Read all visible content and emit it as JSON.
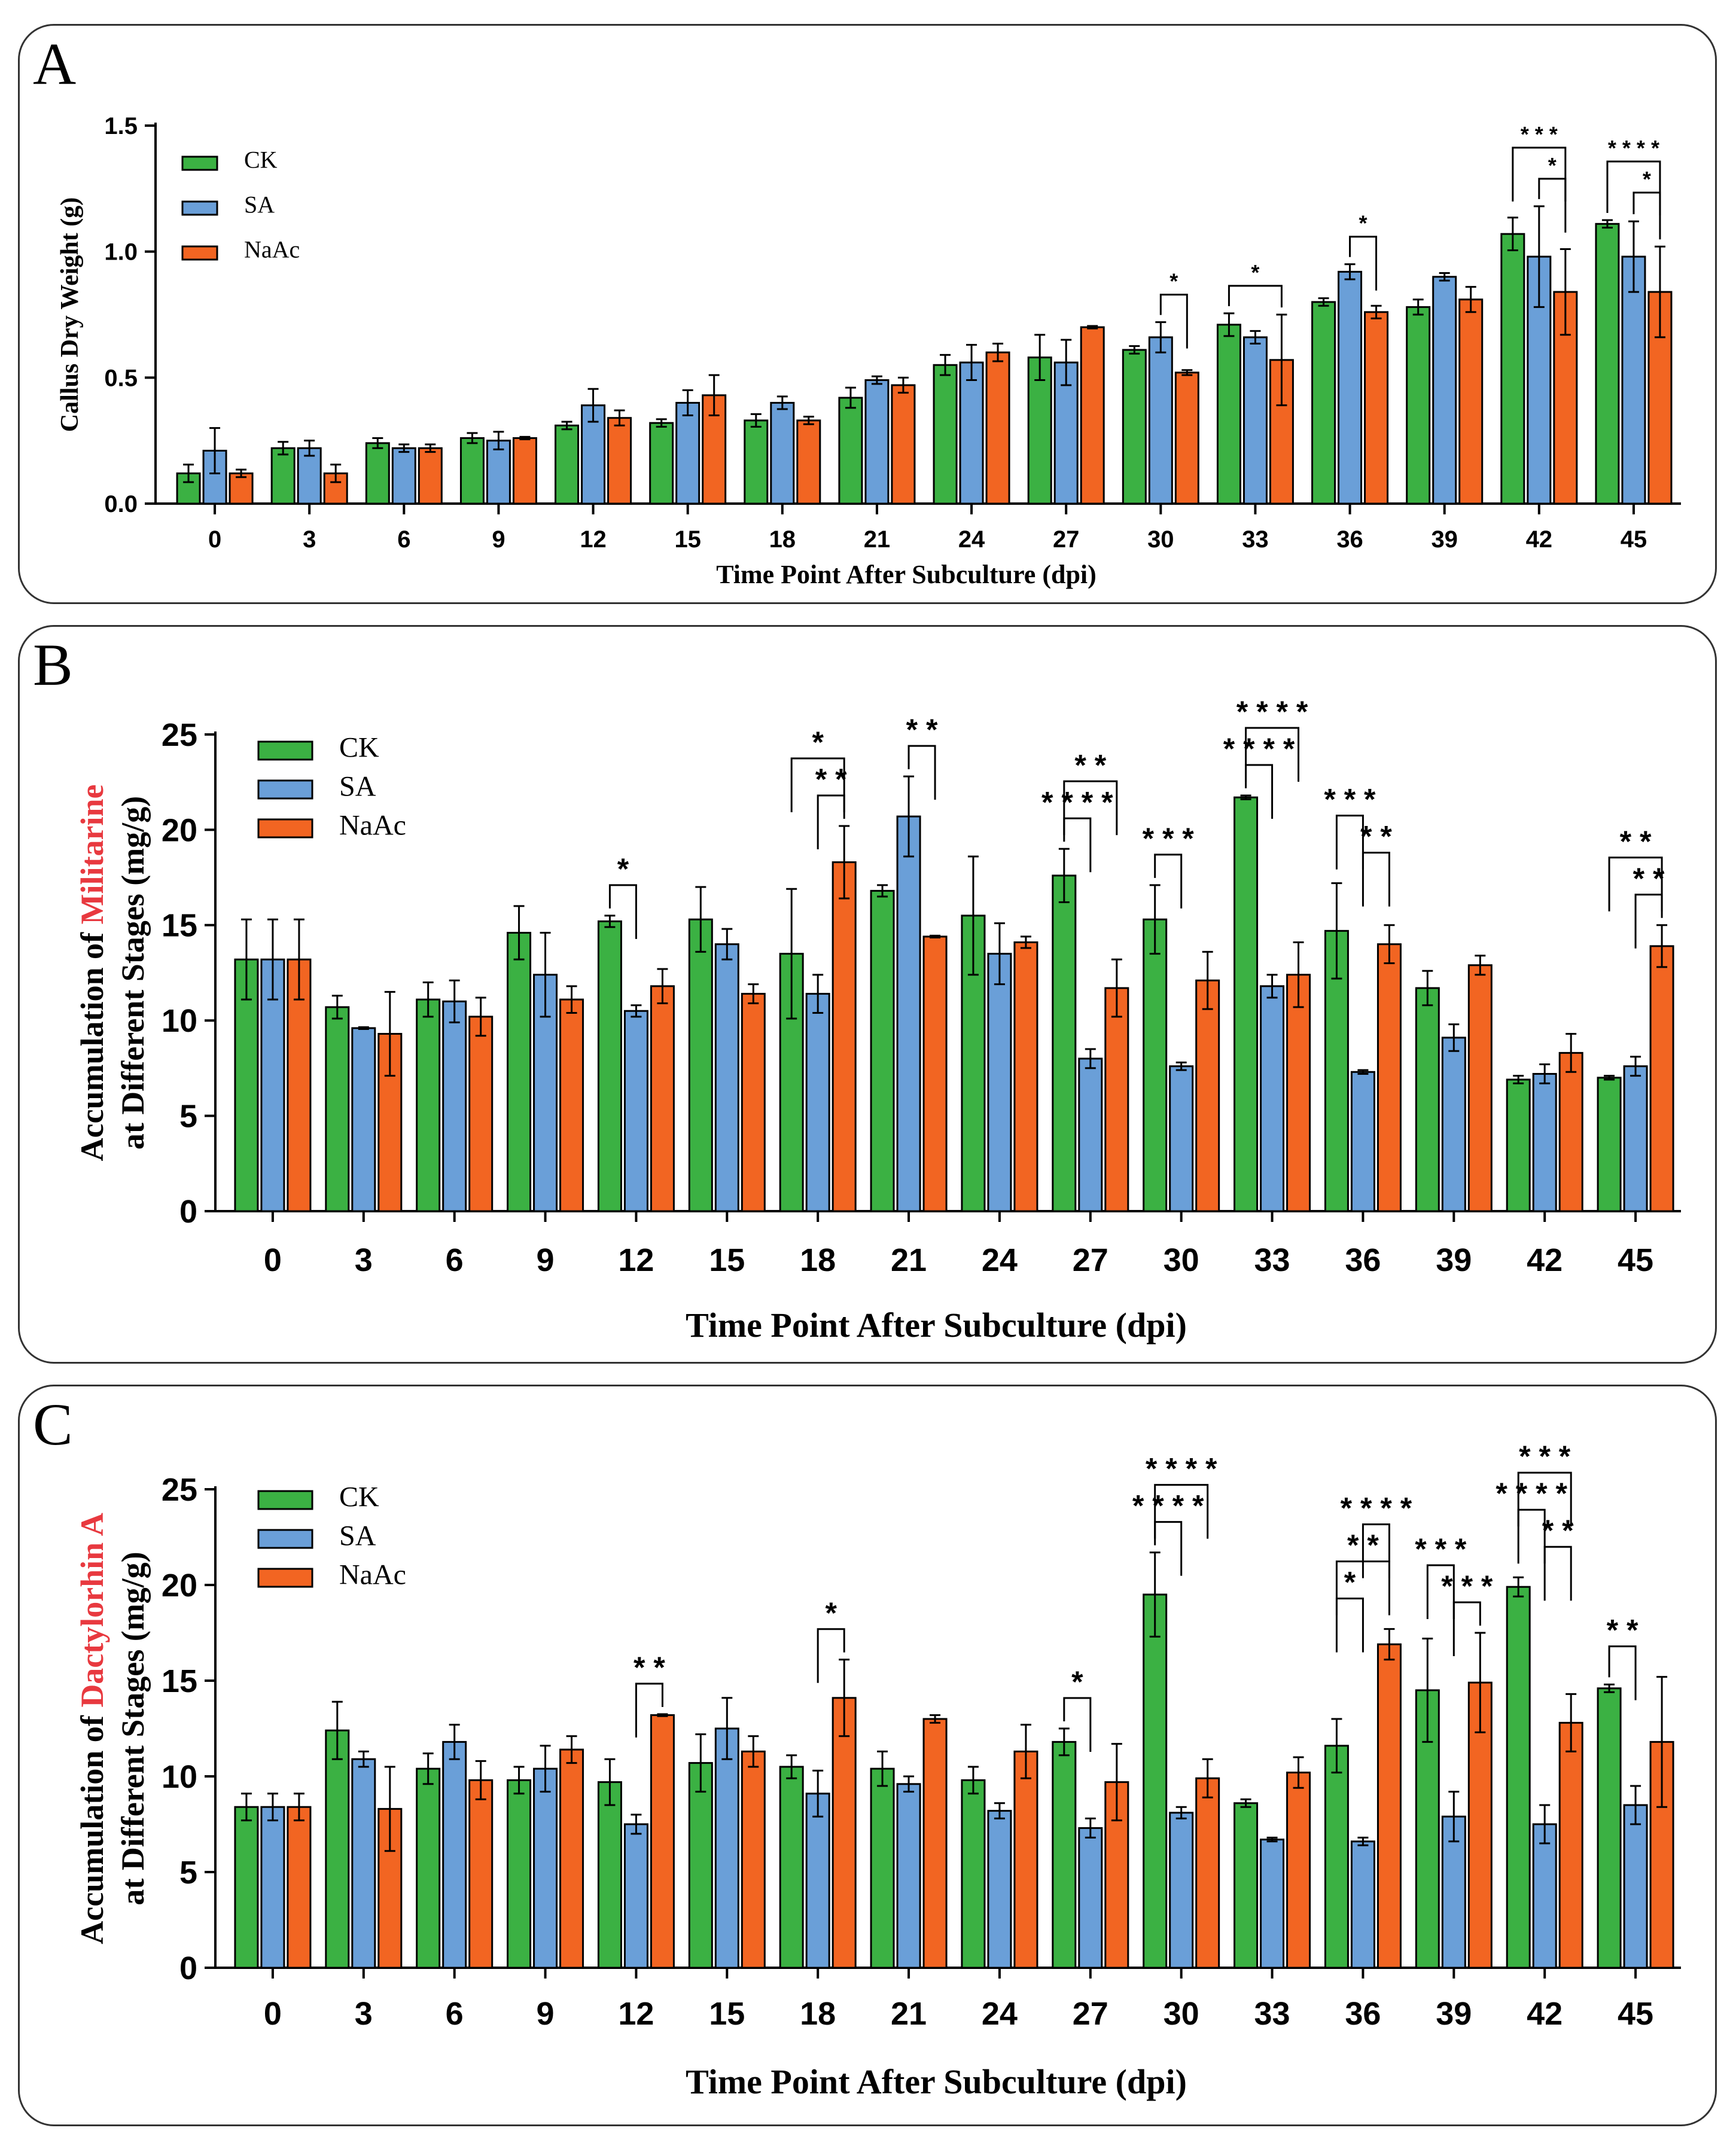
{
  "colors": {
    "CK": "#3bb143",
    "SA": "#6a9fd8",
    "NaAc": "#f26522",
    "frame": "#333333"
  },
  "chart_data": [
    {
      "panel": "A",
      "type": "bar",
      "xlabel": "Time Point After Subculture (dpi)",
      "ylabel_parts": [
        {
          "text": "Callus Dry Weight (g)",
          "color": "#000000"
        }
      ],
      "ylabel_line2": "",
      "ylim": [
        0,
        1.5
      ],
      "yticks": [
        "0.0",
        "0.5",
        "1.0",
        "1.5"
      ],
      "categories": [
        "0",
        "3",
        "6",
        "9",
        "12",
        "15",
        "18",
        "21",
        "24",
        "27",
        "30",
        "33",
        "36",
        "39",
        "42",
        "45"
      ],
      "series": [
        {
          "name": "CK",
          "values": [
            0.12,
            0.22,
            0.24,
            0.26,
            0.31,
            0.32,
            0.33,
            0.42,
            0.55,
            0.58,
            0.61,
            0.71,
            0.8,
            0.78,
            1.07,
            1.11
          ],
          "errors": [
            0.035,
            0.025,
            0.02,
            0.02,
            0.015,
            0.015,
            0.025,
            0.04,
            0.04,
            0.09,
            0.015,
            0.045,
            0.015,
            0.03,
            0.065,
            0.015
          ]
        },
        {
          "name": "SA",
          "values": [
            0.21,
            0.22,
            0.22,
            0.25,
            0.39,
            0.4,
            0.4,
            0.49,
            0.56,
            0.56,
            0.66,
            0.66,
            0.92,
            0.9,
            0.98,
            0.98
          ],
          "errors": [
            0.09,
            0.03,
            0.015,
            0.035,
            0.065,
            0.05,
            0.025,
            0.015,
            0.07,
            0.09,
            0.06,
            0.025,
            0.03,
            0.015,
            0.2,
            0.14
          ]
        },
        {
          "name": "NaAc",
          "values": [
            0.12,
            0.12,
            0.22,
            0.26,
            0.34,
            0.43,
            0.33,
            0.47,
            0.6,
            0.7,
            0.52,
            0.57,
            0.76,
            0.81,
            0.84,
            0.84
          ],
          "errors": [
            0.015,
            0.035,
            0.015,
            0.005,
            0.03,
            0.08,
            0.015,
            0.03,
            0.035,
            0.005,
            0.01,
            0.18,
            0.025,
            0.05,
            0.17,
            0.18
          ]
        }
      ],
      "significance": [
        {
          "category": "30",
          "from": "SA",
          "to": "NaAc",
          "label": "*",
          "level": 0
        },
        {
          "category": "33",
          "from": "CK",
          "to": "NaAc",
          "label": "*",
          "level": 0
        },
        {
          "category": "36",
          "from": "SA",
          "to": "NaAc",
          "label": "*",
          "level": 0
        },
        {
          "category": "42",
          "from": "SA",
          "to": "NaAc",
          "label": "*",
          "level": 0
        },
        {
          "category": "42",
          "from": "CK",
          "to": "NaAc",
          "label": "* * *",
          "level": 1
        },
        {
          "category": "45",
          "from": "SA",
          "to": "NaAc",
          "label": "*",
          "level": 0
        },
        {
          "category": "45",
          "from": "CK",
          "to": "NaAc",
          "label": "* * * *",
          "level": 1
        }
      ]
    },
    {
      "panel": "B",
      "type": "bar",
      "xlabel": "Time Point After Subculture (dpi)",
      "ylabel_parts": [
        {
          "text": "Accumulation of ",
          "color": "#000000"
        },
        {
          "text": "Militarine",
          "color": "#e8393f"
        }
      ],
      "ylabel_line2": "at Different Stages (mg/g)",
      "ylim": [
        0,
        25
      ],
      "yticks": [
        "0",
        "5",
        "10",
        "15",
        "20",
        "25"
      ],
      "categories": [
        "0",
        "3",
        "6",
        "9",
        "12",
        "15",
        "18",
        "21",
        "24",
        "27",
        "30",
        "33",
        "36",
        "39",
        "42",
        "45"
      ],
      "series": [
        {
          "name": "CK",
          "values": [
            13.2,
            10.7,
            11.1,
            14.6,
            15.2,
            15.3,
            13.5,
            16.8,
            15.5,
            17.6,
            15.3,
            21.7,
            14.7,
            11.7,
            6.9,
            7.0
          ],
          "errors": [
            2.1,
            0.6,
            0.9,
            1.4,
            0.3,
            1.7,
            3.4,
            0.3,
            3.1,
            1.4,
            1.8,
            0.1,
            2.5,
            0.9,
            0.2,
            0.1
          ]
        },
        {
          "name": "SA",
          "values": [
            13.2,
            9.6,
            11.0,
            12.4,
            10.5,
            14.0,
            11.4,
            20.7,
            13.5,
            8.0,
            7.6,
            11.8,
            7.3,
            9.1,
            7.2,
            7.6
          ],
          "errors": [
            2.1,
            0.05,
            1.1,
            2.2,
            0.3,
            0.8,
            1.0,
            2.1,
            1.6,
            0.5,
            0.2,
            0.6,
            0.1,
            0.7,
            0.5,
            0.5
          ]
        },
        {
          "name": "NaAc",
          "values": [
            13.2,
            9.3,
            10.2,
            11.1,
            11.8,
            11.4,
            18.3,
            14.4,
            14.1,
            11.7,
            12.1,
            12.4,
            14.0,
            12.9,
            8.3,
            13.9
          ],
          "errors": [
            2.1,
            2.2,
            1.0,
            0.7,
            0.9,
            0.5,
            1.9,
            0.05,
            0.3,
            1.5,
            1.5,
            1.7,
            1.0,
            0.5,
            1.0,
            1.1
          ]
        }
      ],
      "significance": [
        {
          "category": "12",
          "from": "CK",
          "to": "SA",
          "label": "*",
          "level": 0
        },
        {
          "category": "18",
          "from": "SA",
          "to": "NaAc",
          "label": "* *",
          "level": 0
        },
        {
          "category": "18",
          "from": "CK",
          "to": "NaAc",
          "label": "*",
          "level": 1
        },
        {
          "category": "21",
          "from": "SA",
          "to": "NaAc",
          "label": "* *",
          "level": 0
        },
        {
          "category": "27",
          "from": "CK",
          "to": "SA",
          "label": "* * * *",
          "level": 0
        },
        {
          "category": "27",
          "from": "CK",
          "to": "NaAc",
          "label": "* *",
          "level": 1
        },
        {
          "category": "30",
          "from": "CK",
          "to": "SA",
          "label": "* * *",
          "level": 0
        },
        {
          "category": "33",
          "from": "CK",
          "to": "SA",
          "label": "* * * *",
          "level": 0
        },
        {
          "category": "33",
          "from": "CK",
          "to": "NaAc",
          "label": "* * * *",
          "level": 1
        },
        {
          "category": "36",
          "from": "SA",
          "to": "NaAc",
          "label": "* *",
          "level": 0
        },
        {
          "category": "36",
          "from": "CK",
          "to": "SA",
          "label": "* * *",
          "level": 1
        },
        {
          "category": "45",
          "from": "SA",
          "to": "NaAc",
          "label": "* *",
          "level": 0
        },
        {
          "category": "45",
          "from": "CK",
          "to": "NaAc",
          "label": "* *",
          "level": 1
        }
      ]
    },
    {
      "panel": "C",
      "type": "bar",
      "xlabel": "Time Point After Subculture (dpi)",
      "ylabel_parts": [
        {
          "text": "Accumulation of ",
          "color": "#000000"
        },
        {
          "text": "Dactylorhin A",
          "color": "#e8393f"
        }
      ],
      "ylabel_line2": "at Different Stages (mg/g)",
      "ylim": [
        0,
        25
      ],
      "yticks": [
        "0",
        "5",
        "10",
        "15",
        "20",
        "25"
      ],
      "categories": [
        "0",
        "3",
        "6",
        "9",
        "12",
        "15",
        "18",
        "21",
        "24",
        "27",
        "30",
        "33",
        "36",
        "39",
        "42",
        "45"
      ],
      "series": [
        {
          "name": "CK",
          "values": [
            8.4,
            12.4,
            10.4,
            9.8,
            9.7,
            10.7,
            10.5,
            10.4,
            9.8,
            11.8,
            19.5,
            8.6,
            11.6,
            14.5,
            19.9,
            14.6
          ],
          "errors": [
            0.7,
            1.5,
            0.8,
            0.7,
            1.2,
            1.5,
            0.6,
            0.9,
            0.7,
            0.7,
            2.2,
            0.2,
            1.4,
            2.7,
            0.5,
            0.2
          ]
        },
        {
          "name": "SA",
          "values": [
            8.4,
            10.9,
            11.8,
            10.4,
            7.5,
            12.5,
            9.1,
            9.6,
            8.2,
            7.3,
            8.1,
            6.7,
            6.6,
            7.9,
            7.5,
            8.5
          ],
          "errors": [
            0.7,
            0.4,
            0.9,
            1.2,
            0.5,
            1.6,
            1.2,
            0.4,
            0.4,
            0.5,
            0.3,
            0.1,
            0.2,
            1.3,
            1.0,
            1.0
          ]
        },
        {
          "name": "NaAc",
          "values": [
            8.4,
            8.3,
            9.8,
            11.4,
            13.2,
            11.3,
            14.1,
            13.0,
            11.3,
            9.7,
            9.9,
            10.2,
            16.9,
            14.9,
            12.8,
            11.8
          ],
          "errors": [
            0.7,
            2.2,
            1.0,
            0.7,
            0.05,
            0.8,
            2.0,
            0.2,
            1.4,
            2.0,
            1.0,
            0.8,
            0.8,
            2.6,
            1.5,
            3.4
          ]
        }
      ],
      "significance": [
        {
          "category": "12",
          "from": "SA",
          "to": "NaAc",
          "label": "* *",
          "level": 0
        },
        {
          "category": "18",
          "from": "SA",
          "to": "NaAc",
          "label": "*",
          "level": 0
        },
        {
          "category": "27",
          "from": "CK",
          "to": "SA",
          "label": "*",
          "level": 0
        },
        {
          "category": "30",
          "from": "CK",
          "to": "SA",
          "label": "* * * *",
          "level": 0
        },
        {
          "category": "30",
          "from": "CK",
          "to": "NaAc",
          "label": "* * * *",
          "level": 1
        },
        {
          "category": "36",
          "from": "CK",
          "to": "SA",
          "label": "*",
          "level": 0
        },
        {
          "category": "36",
          "from": "CK",
          "to": "NaAc",
          "label": "* *",
          "level": 1
        },
        {
          "category": "36",
          "from": "SA",
          "to": "NaAc",
          "label": "* * * *",
          "level": 2
        },
        {
          "category": "39",
          "from": "SA",
          "to": "NaAc",
          "label": "* * *",
          "level": 0
        },
        {
          "category": "39",
          "from": "CK",
          "to": "SA",
          "label": "* * *",
          "level": 1
        },
        {
          "category": "42",
          "from": "SA",
          "to": "NaAc",
          "label": "* *",
          "level": 0
        },
        {
          "category": "42",
          "from": "CK",
          "to": "SA",
          "label": "* * * *",
          "level": 1
        },
        {
          "category": "42",
          "from": "CK",
          "to": "NaAc",
          "label": "* * *",
          "level": 2
        },
        {
          "category": "45",
          "from": "CK",
          "to": "SA",
          "label": "* *",
          "level": 0
        }
      ]
    }
  ]
}
